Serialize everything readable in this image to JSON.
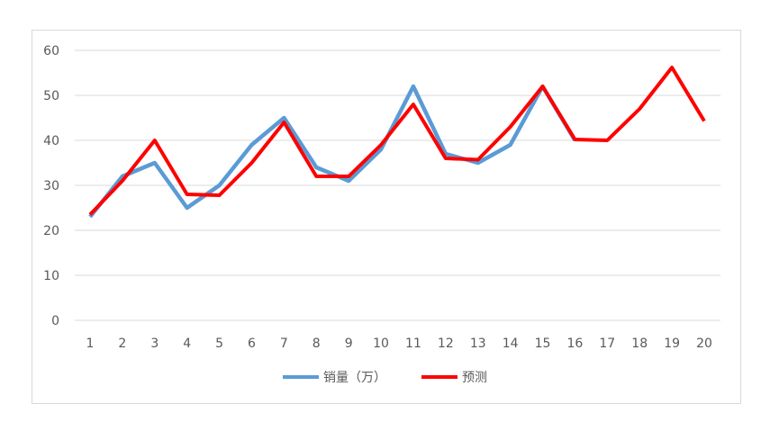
{
  "chart_data": {
    "type": "line",
    "title": "",
    "xlabel": "",
    "ylabel": "",
    "x": [
      1,
      2,
      3,
      4,
      5,
      6,
      7,
      8,
      9,
      10,
      11,
      12,
      13,
      14,
      15,
      16,
      17,
      18,
      19,
      20
    ],
    "ylim": [
      0,
      60
    ],
    "yticks": [
      0,
      10,
      20,
      30,
      40,
      50,
      60
    ],
    "grid": true,
    "legend_placement": "bottom",
    "series": [
      {
        "name": "销量（万）",
        "color": "#5b9bd5",
        "values": [
          23,
          32,
          35,
          25,
          30,
          39,
          45,
          34,
          31,
          38,
          52,
          37,
          35,
          39,
          52,
          40,
          null,
          null,
          null,
          null
        ]
      },
      {
        "name": "预测",
        "color": "#ff0000",
        "values": [
          23.5,
          31,
          40,
          28,
          27.8,
          35,
          44,
          32,
          32,
          39,
          48,
          36,
          35.7,
          43,
          52,
          40.2,
          40,
          47,
          56.2,
          44.3
        ]
      }
    ]
  }
}
